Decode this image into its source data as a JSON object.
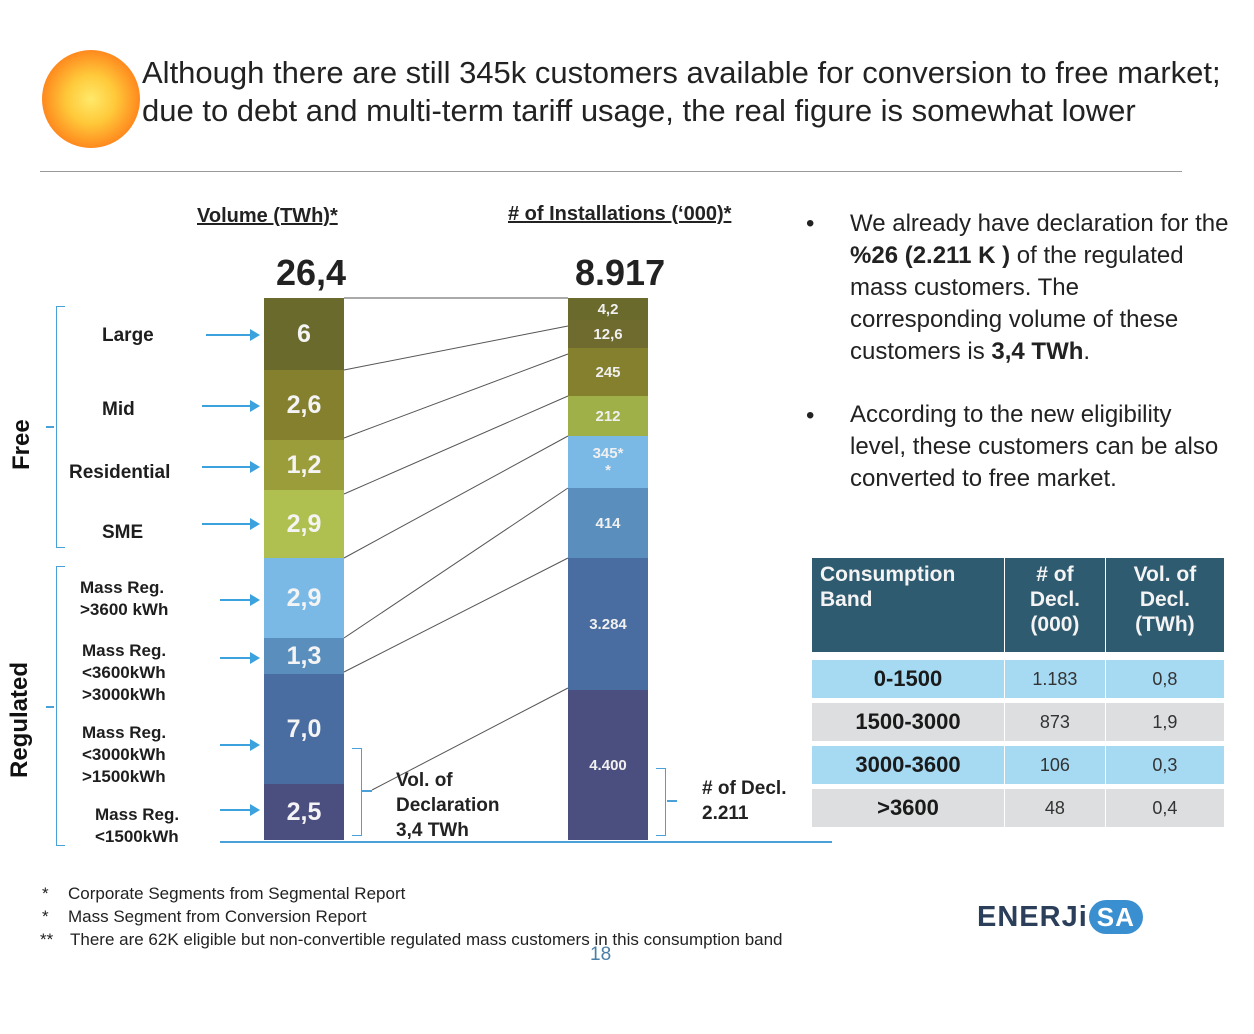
{
  "title": "Although there are still 345k customers available for conversion to free market; due to debt and multi-term tariff usage, the real figure is somewhat lower",
  "side_labels": {
    "free": "Free",
    "regulated": "Regulated"
  },
  "column_heads": {
    "volume": "Volume (TWh)*",
    "installations": "# of Installations (‘000)*"
  },
  "totals": {
    "volume": "26,4",
    "installations": "8.917"
  },
  "categories": {
    "large": "Large",
    "mid": "Mid",
    "residential": "Residential",
    "sme": "SME",
    "mass_3600_l1": "Mass Reg.",
    "mass_3600_l2": ">3600 kWh",
    "mass_3000_l1": "Mass Reg.",
    "mass_3000_l2": "<3600kWh",
    "mass_3000_l3": ">3000kWh",
    "mass_1500_l1": "Mass Reg.",
    "mass_1500_l2": "<3000kWh",
    "mass_1500_l3": ">1500kWh",
    "mass_low_l1": "Mass Reg.",
    "mass_low_l2": "<1500kWh"
  },
  "notes": {
    "vol_decl_l1": "Vol. of",
    "vol_decl_l2": "Declaration",
    "vol_decl_l3": "3,4 TWh",
    "num_decl_l1": "# of Decl.",
    "num_decl_l2": "2.211"
  },
  "bullets": {
    "b1_pre": "We already have declaration for the ",
    "b1_bold1": "%26 (2.211 K )",
    "b1_mid": " of the regulated mass customers. The corresponding volume of these customers is ",
    "b1_bold2": "3,4 TWh",
    "b1_post": ".",
    "b2": "According to the new eligibility level, these customers can be also converted to free market.",
    "dot": "•"
  },
  "table": {
    "headers": [
      "Consumption Band",
      "# of Decl. (000)",
      "Vol. of Decl. (TWh)"
    ],
    "rows": [
      [
        "0-1500",
        "1.183",
        "0,8"
      ],
      [
        "1500-3000",
        "873",
        "1,9"
      ],
      [
        "3000-3600",
        "106",
        "0,3"
      ],
      [
        ">3600",
        "48",
        "0,4"
      ]
    ]
  },
  "footnotes": {
    "f1_mark": "*",
    "f1": "Corporate Segments from Segmental Report",
    "f2_mark": "*",
    "f2": "Mass Segment from Conversion Report",
    "f3_mark": "**",
    "f3": "There are 62K eligible but non-convertible regulated  mass customers in this consumption band"
  },
  "page_number": "18",
  "logo": {
    "text": "ENERJi",
    "badge": "SA"
  },
  "colors": {
    "large": "#6a6a2c",
    "mid": "#85802e",
    "residential": "#9a9d3a",
    "sme": "#b0c050",
    "mass_3600": "#7ab8e6",
    "mass_3000": "#5a8ebd",
    "mass_1500": "#4a6da1",
    "mass_low": "#4a4f80",
    "accent_line": "#4aa0d8",
    "table_header": "#2f5b70"
  },
  "chart_data": [
    {
      "type": "bar",
      "title": "Volume (TWh)*",
      "total": "26,4",
      "categories": [
        "Large",
        "Mid",
        "Residential",
        "SME",
        "Mass Reg. >3600 kWh",
        "Mass Reg. <3600kWh >3000kWh",
        "Mass Reg. <3000kWh >1500kWh",
        "Mass Reg. <1500kWh"
      ],
      "values": [
        6,
        2.6,
        1.2,
        2.9,
        2.9,
        1.3,
        7.0,
        2.5
      ],
      "labels": [
        "6",
        "2,6",
        "1,2",
        "2,9",
        "2,9",
        "1,3",
        "7,0",
        "2,5"
      ]
    },
    {
      "type": "bar",
      "title": "# of Installations (‘000)*",
      "total": "8.917",
      "values": [
        4.2,
        12.6,
        245,
        212,
        345,
        414,
        3284,
        4400
      ],
      "labels": [
        "4,2",
        "12,6",
        "245",
        "212",
        "345*\n*",
        "414",
        "3.284",
        "4.400"
      ]
    }
  ]
}
